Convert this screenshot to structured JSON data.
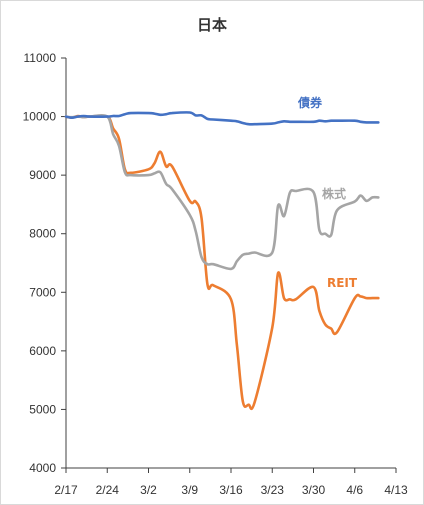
{
  "chart_data": {
    "type": "line",
    "title": "日本",
    "xlabel": "",
    "ylabel": "",
    "ylim": [
      4000,
      11000
    ],
    "x_range": [
      "2/17",
      "4/13"
    ],
    "grid": false,
    "y_ticks": [
      "4000",
      "5000",
      "6000",
      "7000",
      "8000",
      "9000",
      "10000",
      "11000"
    ],
    "x_ticks": [
      "2/17",
      "2/24",
      "3/2",
      "3/9",
      "3/16",
      "3/23",
      "3/30",
      "4/6",
      "4/13"
    ],
    "x": [
      "2/17",
      "2/18",
      "2/19",
      "2/20",
      "2/21",
      "2/24",
      "2/25",
      "2/26",
      "2/27",
      "2/28",
      "3/2",
      "3/3",
      "3/4",
      "3/5",
      "3/6",
      "3/9",
      "3/10",
      "3/11",
      "3/12",
      "3/13",
      "3/16",
      "3/17",
      "3/18",
      "3/19",
      "3/20",
      "3/23",
      "3/24",
      "3/25",
      "3/26",
      "3/27",
      "3/30",
      "3/31",
      "4/1",
      "4/2",
      "4/3",
      "4/6",
      "4/7",
      "4/8",
      "4/9",
      "4/10"
    ],
    "series": [
      {
        "name": "債券",
        "color": "#4472c4",
        "values": [
          10000,
          9980,
          10000,
          10010,
          10000,
          10000,
          10010,
          10010,
          10040,
          10060,
          10060,
          10050,
          10030,
          10040,
          10060,
          10070,
          10020,
          10020,
          9960,
          9950,
          9930,
          9920,
          9890,
          9870,
          9870,
          9880,
          9900,
          9920,
          9910,
          9910,
          9910,
          9930,
          9920,
          9930,
          9930,
          9930,
          9910,
          9900,
          9900,
          9900
        ]
      },
      {
        "name": "株式",
        "color": "#a5a5a5",
        "values": [
          10000,
          9990,
          10000,
          9990,
          10000,
          10000,
          9700,
          9500,
          9050,
          9000,
          9000,
          9030,
          9050,
          8850,
          8760,
          8320,
          8050,
          7600,
          7480,
          7480,
          7400,
          7530,
          7640,
          7660,
          7680,
          7680,
          8480,
          8300,
          8700,
          8730,
          8710,
          8060,
          8000,
          7980,
          8400,
          8550,
          8650,
          8560,
          8620,
          8620
        ]
      },
      {
        "name": "REIT",
        "color": "#ed7d31",
        "values": [
          10000,
          9980,
          10010,
          9990,
          10000,
          10000,
          9800,
          9620,
          9100,
          9040,
          9100,
          9200,
          9400,
          9150,
          9150,
          8560,
          8550,
          8270,
          7140,
          7120,
          6880,
          6100,
          5140,
          5080,
          5120,
          6400,
          7330,
          6900,
          6880,
          6880,
          7090,
          6680,
          6450,
          6380,
          6320,
          6900,
          6930,
          6900,
          6900,
          6900
        ]
      }
    ]
  }
}
